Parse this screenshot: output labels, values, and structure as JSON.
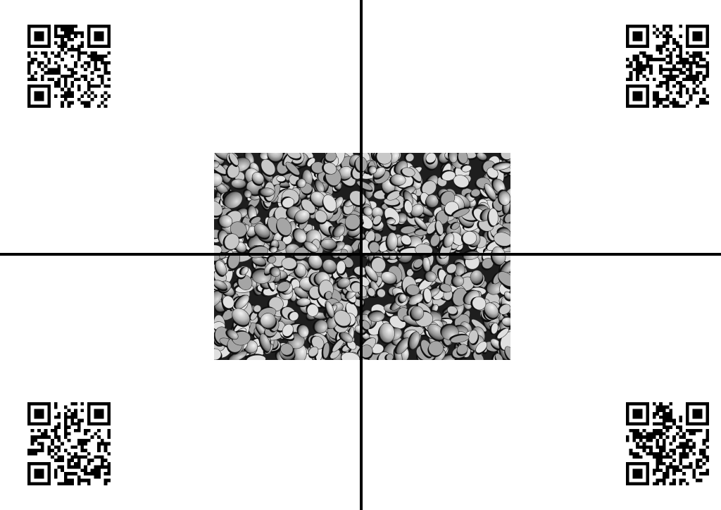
{
  "markers": [
    {
      "name": "qr-code-top-left"
    },
    {
      "name": "qr-code-top-right"
    },
    {
      "name": "qr-code-bottom-left"
    },
    {
      "name": "qr-code-bottom-right"
    }
  ],
  "image": {
    "subject": "gravel-stones",
    "tone": "grayscale"
  },
  "crosshair": {
    "color": "#000000"
  }
}
